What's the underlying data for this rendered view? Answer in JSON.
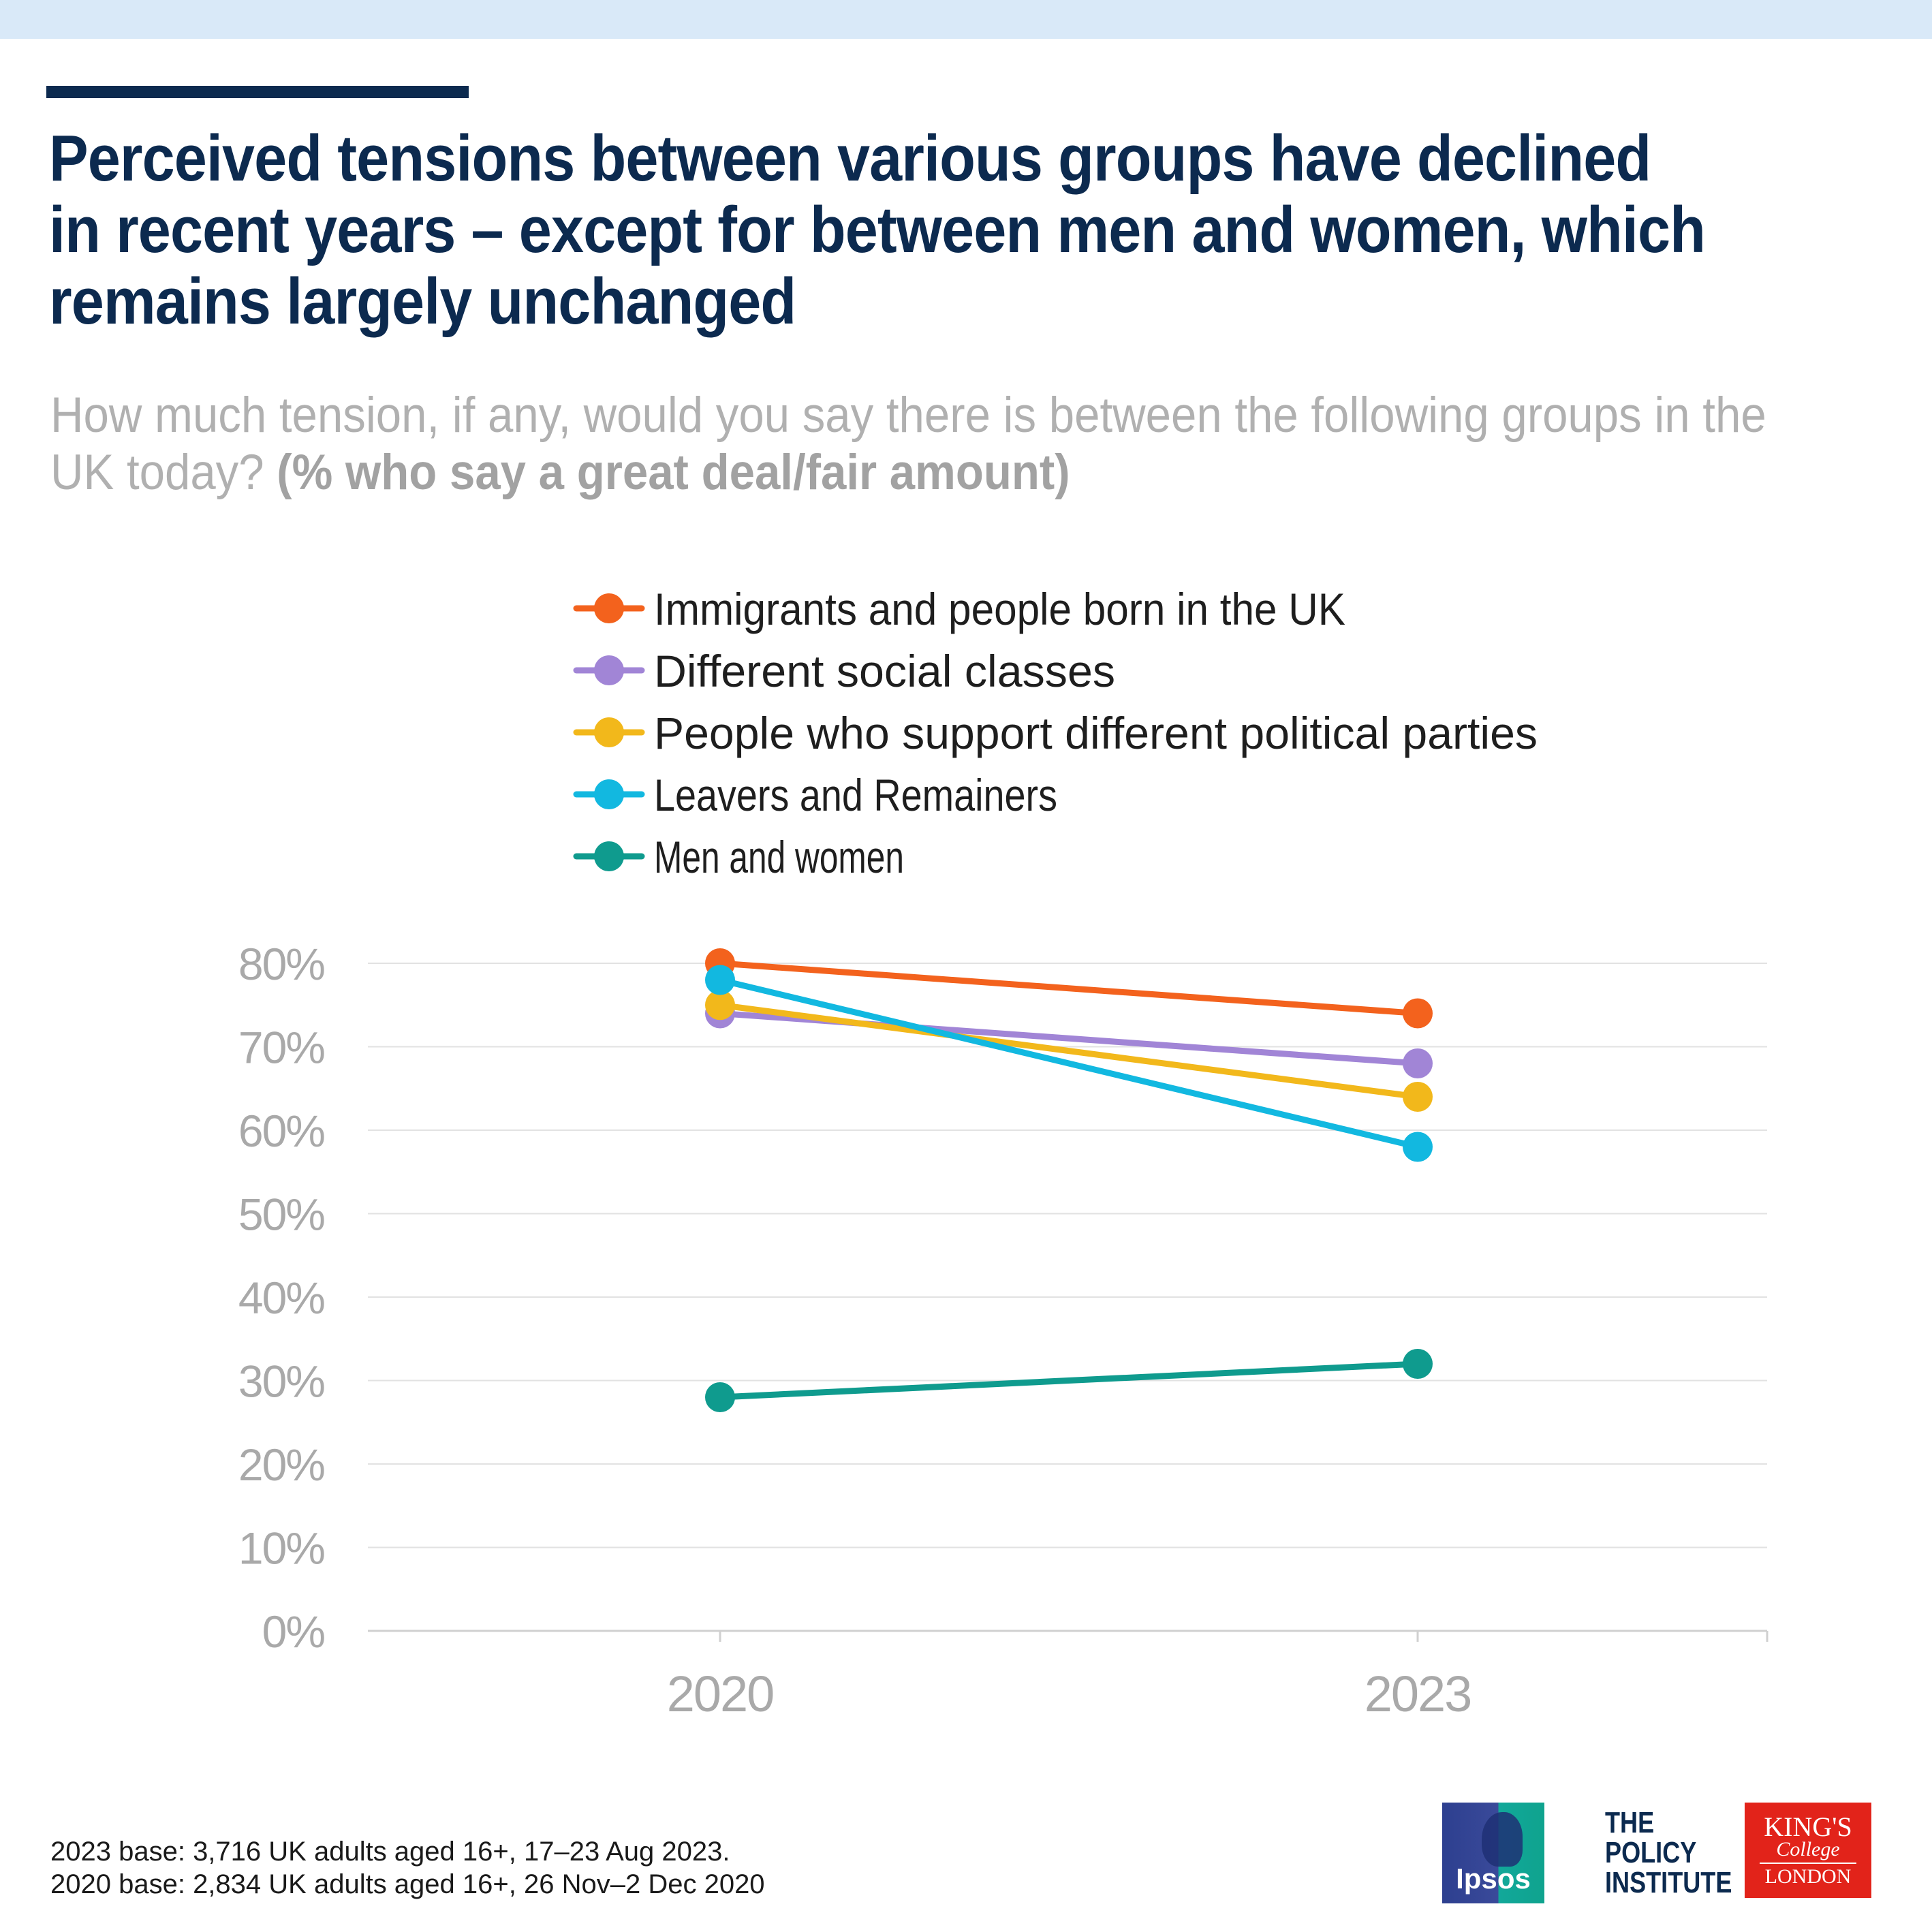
{
  "headline": "Perceived tensions between various groups have declined in recent years – except for between men and women, which remains largely unchanged",
  "question": {
    "text": "How much tension, if any, would you say there is between the following groups in the UK today?",
    "emphasis": "(% who say a great deal/fair amount)"
  },
  "chart_data": {
    "type": "line",
    "title": "",
    "xlabel": "",
    "ylabel": "",
    "x": [
      "2020",
      "2023"
    ],
    "ylim": [
      0,
      80
    ],
    "yticks": [
      "0%",
      "10%",
      "20%",
      "30%",
      "40%",
      "50%",
      "60%",
      "70%",
      "80%"
    ],
    "grid": true,
    "legend_position": "top",
    "series": [
      {
        "name": "Immigrants and people born in the UK",
        "values": [
          80,
          74
        ],
        "color": "#f3621d"
      },
      {
        "name": "Different social classes",
        "values": [
          74,
          68
        ],
        "color": "#a185d6"
      },
      {
        "name": "People who support different political parties",
        "values": [
          75,
          64
        ],
        "color": "#f2b81b"
      },
      {
        "name": "Leavers and Remainers",
        "values": [
          78,
          58
        ],
        "color": "#12b8e0"
      },
      {
        "name": "Men and women",
        "values": [
          28,
          32
        ],
        "color": "#0f9b8e"
      }
    ]
  },
  "footnotes": [
    "2023 base: 3,716 UK adults aged 16+, 17–23 Aug 2023.",
    "2020 base: 2,834 UK adults aged 16+, 26 Nov–2 Dec 2020"
  ],
  "logos": {
    "ipsos": "Ipsos",
    "policy_institute": [
      "THE",
      "POLICY",
      "INSTITUTE"
    ],
    "kings": [
      "KING'S",
      "College",
      "LONDON"
    ]
  },
  "colors": {
    "top_band": "#d9e9f8",
    "headline": "#0c2a4f",
    "axis_text": "#a9a9a9",
    "gridline": "#e2e2e2"
  }
}
